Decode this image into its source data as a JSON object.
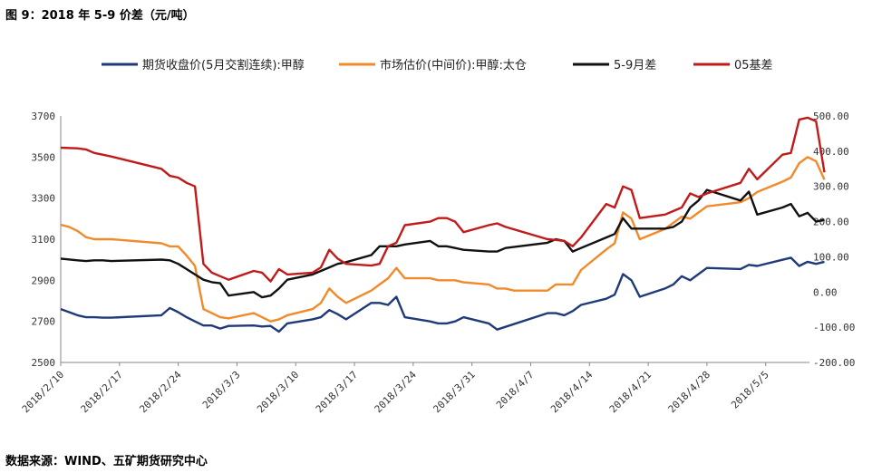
{
  "title": "图 9：2018 年 5-9 价差（元/吨）",
  "source": "数据来源：WIND、五矿期货研究中心",
  "chart_data": {
    "type": "line",
    "legend_position": "top",
    "grid": false,
    "x_ticks": [
      "2018/2/10",
      "2018/2/17",
      "2018/2/24",
      "2018/3/3",
      "2018/3/10",
      "2018/3/17",
      "2018/3/24",
      "2018/3/31",
      "2018/4/7",
      "2018/4/14",
      "2018/4/21",
      "2018/4/28",
      "2018/5/5"
    ],
    "x_range": [
      "2018/2/10",
      "2018/5/10"
    ],
    "left_axis": {
      "ylim": [
        2500,
        3700
      ],
      "ticks": [
        "2500",
        "2700",
        "2900",
        "3100",
        "3300",
        "3500",
        "3700"
      ]
    },
    "right_axis": {
      "ylim": [
        -200,
        500
      ],
      "ticks": [
        "-200.00",
        "-100.00",
        "0.00",
        "100.00",
        "200.00",
        "300.00",
        "400.00",
        "500.00"
      ]
    },
    "series": [
      {
        "name": "期货收盘价(5月交割连续):甲醇",
        "axis": "left",
        "color": "#1f3a78",
        "points": [
          [
            "2018/2/10",
            2760
          ],
          [
            "2018/2/11",
            2745
          ],
          [
            "2018/2/12",
            2730
          ],
          [
            "2018/2/13",
            2720
          ],
          [
            "2018/2/14",
            2720
          ],
          [
            "2018/2/15",
            2718
          ],
          [
            "2018/2/16",
            2718
          ],
          [
            "2018/2/22",
            2730
          ],
          [
            "2018/2/23",
            2765
          ],
          [
            "2018/2/24",
            2745
          ],
          [
            "2018/2/25",
            2720
          ],
          [
            "2018/2/26",
            2700
          ],
          [
            "2018/2/27",
            2680
          ],
          [
            "2018/2/28",
            2680
          ],
          [
            "2018/3/1",
            2665
          ],
          [
            "2018/3/2",
            2678
          ],
          [
            "2018/3/5",
            2680
          ],
          [
            "2018/3/6",
            2675
          ],
          [
            "2018/3/7",
            2678
          ],
          [
            "2018/3/8",
            2650
          ],
          [
            "2018/3/9",
            2690
          ],
          [
            "2018/3/12",
            2710
          ],
          [
            "2018/3/13",
            2720
          ],
          [
            "2018/3/14",
            2755
          ],
          [
            "2018/3/15",
            2735
          ],
          [
            "2018/3/16",
            2710
          ],
          [
            "2018/3/19",
            2790
          ],
          [
            "2018/3/20",
            2790
          ],
          [
            "2018/3/21",
            2780
          ],
          [
            "2018/3/22",
            2820
          ],
          [
            "2018/3/23",
            2720
          ],
          [
            "2018/3/26",
            2700
          ],
          [
            "2018/3/27",
            2690
          ],
          [
            "2018/3/28",
            2690
          ],
          [
            "2018/3/29",
            2700
          ],
          [
            "2018/3/30",
            2720
          ],
          [
            "2018/4/2",
            2690
          ],
          [
            "2018/4/3",
            2660
          ],
          [
            "2018/4/9",
            2740
          ],
          [
            "2018/4/10",
            2740
          ],
          [
            "2018/4/11",
            2730
          ],
          [
            "2018/4/12",
            2750
          ],
          [
            "2018/4/13",
            2780
          ],
          [
            "2018/4/16",
            2810
          ],
          [
            "2018/4/17",
            2830
          ],
          [
            "2018/4/18",
            2930
          ],
          [
            "2018/4/19",
            2900
          ],
          [
            "2018/4/20",
            2820
          ],
          [
            "2018/4/23",
            2860
          ],
          [
            "2018/4/24",
            2880
          ],
          [
            "2018/4/25",
            2920
          ],
          [
            "2018/4/26",
            2900
          ],
          [
            "2018/4/27",
            2930
          ],
          [
            "2018/4/28",
            2960
          ],
          [
            "2018/5/2",
            2955
          ],
          [
            "2018/5/3",
            2975
          ],
          [
            "2018/5/4",
            2970
          ],
          [
            "2018/5/7",
            3000
          ],
          [
            "2018/5/8",
            3010
          ],
          [
            "2018/5/9",
            2970
          ],
          [
            "2018/5/10",
            2990
          ],
          [
            "2018/5/11",
            2980
          ],
          [
            "2018/5/12",
            2990
          ]
        ]
      },
      {
        "name": "市场估价(中间价):甲醇:太仓",
        "axis": "left",
        "color": "#f08a2a",
        "points": [
          [
            "2018/2/10",
            3170
          ],
          [
            "2018/2/11",
            3160
          ],
          [
            "2018/2/12",
            3140
          ],
          [
            "2018/2/13",
            3110
          ],
          [
            "2018/2/14",
            3100
          ],
          [
            "2018/2/15",
            3100
          ],
          [
            "2018/2/16",
            3100
          ],
          [
            "2018/2/22",
            3080
          ],
          [
            "2018/2/23",
            3065
          ],
          [
            "2018/2/24",
            3065
          ],
          [
            "2018/2/25",
            3020
          ],
          [
            "2018/2/26",
            2970
          ],
          [
            "2018/2/27",
            2760
          ],
          [
            "2018/2/28",
            2740
          ],
          [
            "2018/3/1",
            2720
          ],
          [
            "2018/3/2",
            2715
          ],
          [
            "2018/3/5",
            2740
          ],
          [
            "2018/3/6",
            2720
          ],
          [
            "2018/3/7",
            2700
          ],
          [
            "2018/3/8",
            2710
          ],
          [
            "2018/3/9",
            2730
          ],
          [
            "2018/3/12",
            2760
          ],
          [
            "2018/3/13",
            2790
          ],
          [
            "2018/3/14",
            2860
          ],
          [
            "2018/3/15",
            2820
          ],
          [
            "2018/3/16",
            2790
          ],
          [
            "2018/3/19",
            2850
          ],
          [
            "2018/3/20",
            2880
          ],
          [
            "2018/3/21",
            2910
          ],
          [
            "2018/3/22",
            2960
          ],
          [
            "2018/3/23",
            2910
          ],
          [
            "2018/3/26",
            2910
          ],
          [
            "2018/3/27",
            2900
          ],
          [
            "2018/3/28",
            2900
          ],
          [
            "2018/3/29",
            2900
          ],
          [
            "2018/3/30",
            2890
          ],
          [
            "2018/4/2",
            2880
          ],
          [
            "2018/4/3",
            2860
          ],
          [
            "2018/4/4",
            2860
          ],
          [
            "2018/4/5",
            2850
          ],
          [
            "2018/4/9",
            2850
          ],
          [
            "2018/4/10",
            2880
          ],
          [
            "2018/4/11",
            2880
          ],
          [
            "2018/4/12",
            2880
          ],
          [
            "2018/4/13",
            2950
          ],
          [
            "2018/4/16",
            3050
          ],
          [
            "2018/4/17",
            3080
          ],
          [
            "2018/4/18",
            3230
          ],
          [
            "2018/4/19",
            3200
          ],
          [
            "2018/4/20",
            3100
          ],
          [
            "2018/4/23",
            3150
          ],
          [
            "2018/4/24",
            3180
          ],
          [
            "2018/4/25",
            3210
          ],
          [
            "2018/4/26",
            3200
          ],
          [
            "2018/4/27",
            3230
          ],
          [
            "2018/4/28",
            3260
          ],
          [
            "2018/5/2",
            3280
          ],
          [
            "2018/5/3",
            3300
          ],
          [
            "2018/5/4",
            3330
          ],
          [
            "2018/5/7",
            3380
          ],
          [
            "2018/5/8",
            3400
          ],
          [
            "2018/5/9",
            3470
          ],
          [
            "2018/5/10",
            3500
          ],
          [
            "2018/5/11",
            3480
          ],
          [
            "2018/5/12",
            3390
          ]
        ]
      },
      {
        "name": "5-9月差",
        "axis": "right",
        "color": "#111111",
        "points": [
          [
            "2018/2/10",
            95
          ],
          [
            "2018/2/12",
            90
          ],
          [
            "2018/2/13",
            88
          ],
          [
            "2018/2/14",
            90
          ],
          [
            "2018/2/15",
            90
          ],
          [
            "2018/2/16",
            88
          ],
          [
            "2018/2/22",
            92
          ],
          [
            "2018/2/23",
            90
          ],
          [
            "2018/2/24",
            80
          ],
          [
            "2018/2/25",
            65
          ],
          [
            "2018/2/26",
            50
          ],
          [
            "2018/2/27",
            35
          ],
          [
            "2018/2/28",
            28
          ],
          [
            "2018/3/1",
            25
          ],
          [
            "2018/3/2",
            -10
          ],
          [
            "2018/3/5",
            0
          ],
          [
            "2018/3/6",
            -15
          ],
          [
            "2018/3/7",
            -10
          ],
          [
            "2018/3/8",
            10
          ],
          [
            "2018/3/9",
            35
          ],
          [
            "2018/3/12",
            50
          ],
          [
            "2018/3/13",
            60
          ],
          [
            "2018/3/14",
            70
          ],
          [
            "2018/3/15",
            80
          ],
          [
            "2018/3/16",
            85
          ],
          [
            "2018/3/19",
            105
          ],
          [
            "2018/3/20",
            130
          ],
          [
            "2018/3/21",
            130
          ],
          [
            "2018/3/22",
            130
          ],
          [
            "2018/3/23",
            135
          ],
          [
            "2018/3/26",
            145
          ],
          [
            "2018/3/27",
            130
          ],
          [
            "2018/3/28",
            130
          ],
          [
            "2018/3/29",
            125
          ],
          [
            "2018/3/30",
            120
          ],
          [
            "2018/4/2",
            115
          ],
          [
            "2018/4/3",
            115
          ],
          [
            "2018/4/4",
            125
          ],
          [
            "2018/4/9",
            140
          ],
          [
            "2018/4/10",
            150
          ],
          [
            "2018/4/11",
            145
          ],
          [
            "2018/4/12",
            115
          ],
          [
            "2018/4/13",
            125
          ],
          [
            "2018/4/16",
            155
          ],
          [
            "2018/4/17",
            165
          ],
          [
            "2018/4/18",
            210
          ],
          [
            "2018/4/19",
            180
          ],
          [
            "2018/4/20",
            180
          ],
          [
            "2018/4/23",
            180
          ],
          [
            "2018/4/24",
            185
          ],
          [
            "2018/4/25",
            200
          ],
          [
            "2018/4/26",
            240
          ],
          [
            "2018/4/27",
            260
          ],
          [
            "2018/4/28",
            290
          ],
          [
            "2018/5/2",
            260
          ],
          [
            "2018/5/3",
            285
          ],
          [
            "2018/5/4",
            220
          ],
          [
            "2018/5/7",
            240
          ],
          [
            "2018/5/8",
            250
          ],
          [
            "2018/5/9",
            215
          ],
          [
            "2018/5/10",
            225
          ],
          [
            "2018/5/11",
            200
          ],
          [
            "2018/5/12",
            205
          ]
        ]
      },
      {
        "name": "05基差",
        "axis": "right",
        "color": "#c01a1a",
        "points": [
          [
            "2018/2/10",
            410
          ],
          [
            "2018/2/12",
            408
          ],
          [
            "2018/2/13",
            405
          ],
          [
            "2018/2/14",
            395
          ],
          [
            "2018/2/15",
            390
          ],
          [
            "2018/2/16",
            385
          ],
          [
            "2018/2/22",
            350
          ],
          [
            "2018/2/23",
            330
          ],
          [
            "2018/2/24",
            325
          ],
          [
            "2018/2/25",
            310
          ],
          [
            "2018/2/26",
            300
          ],
          [
            "2018/2/27",
            80
          ],
          [
            "2018/2/28",
            55
          ],
          [
            "2018/3/1",
            45
          ],
          [
            "2018/3/2",
            35
          ],
          [
            "2018/3/5",
            60
          ],
          [
            "2018/3/6",
            55
          ],
          [
            "2018/3/7",
            30
          ],
          [
            "2018/3/8",
            65
          ],
          [
            "2018/3/9",
            50
          ],
          [
            "2018/3/12",
            55
          ],
          [
            "2018/3/13",
            70
          ],
          [
            "2018/3/14",
            120
          ],
          [
            "2018/3/15",
            95
          ],
          [
            "2018/3/16",
            80
          ],
          [
            "2018/3/19",
            75
          ],
          [
            "2018/3/20",
            80
          ],
          [
            "2018/3/21",
            130
          ],
          [
            "2018/3/22",
            140
          ],
          [
            "2018/3/23",
            190
          ],
          [
            "2018/3/26",
            200
          ],
          [
            "2018/3/27",
            210
          ],
          [
            "2018/3/28",
            210
          ],
          [
            "2018/3/29",
            200
          ],
          [
            "2018/3/30",
            170
          ],
          [
            "2018/4/2",
            190
          ],
          [
            "2018/4/3",
            195
          ],
          [
            "2018/4/4",
            185
          ],
          [
            "2018/4/9",
            150
          ],
          [
            "2018/4/10",
            148
          ],
          [
            "2018/4/11",
            145
          ],
          [
            "2018/4/12",
            130
          ],
          [
            "2018/4/13",
            155
          ],
          [
            "2018/4/16",
            250
          ],
          [
            "2018/4/17",
            240
          ],
          [
            "2018/4/18",
            300
          ],
          [
            "2018/4/19",
            290
          ],
          [
            "2018/4/20",
            210
          ],
          [
            "2018/4/23",
            220
          ],
          [
            "2018/4/24",
            230
          ],
          [
            "2018/4/25",
            240
          ],
          [
            "2018/4/26",
            280
          ],
          [
            "2018/4/27",
            270
          ],
          [
            "2018/4/28",
            280
          ],
          [
            "2018/5/2",
            310
          ],
          [
            "2018/5/3",
            350
          ],
          [
            "2018/5/4",
            320
          ],
          [
            "2018/5/7",
            390
          ],
          [
            "2018/5/8",
            395
          ],
          [
            "2018/5/9",
            490
          ],
          [
            "2018/5/10",
            495
          ],
          [
            "2018/5/11",
            485
          ],
          [
            "2018/5/12",
            340
          ]
        ]
      }
    ]
  }
}
